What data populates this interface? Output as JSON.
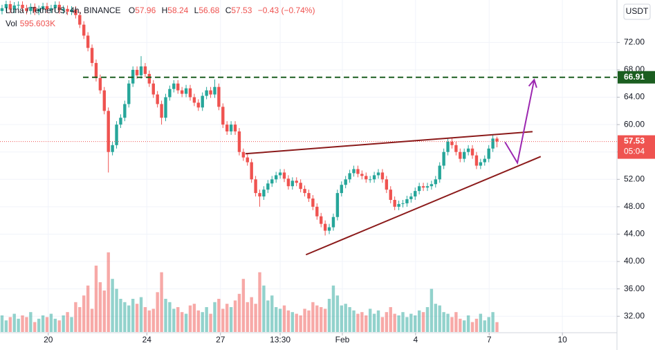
{
  "chart_data": {
    "type": "candlestick",
    "symbol": "Luna / TetherUS, 4h, BINANCE",
    "ohlc_labels": [
      "O",
      "H",
      "L",
      "C"
    ],
    "change_label": "−0.43 (−0.74%)",
    "axis_unit": "USDT",
    "countdown": "05:04",
    "up_color": "#26a69a",
    "down_color": "#ef5350",
    "open": [
      76.6,
      77.0,
      77.6,
      76.8,
      77.4,
      77.5,
      77.0,
      76.6,
      77.2,
      76.5,
      76.9,
      77.3,
      76.8,
      77.0,
      77.5,
      76.7,
      76.9,
      76.5,
      76.8,
      76.0,
      74.6,
      73.0,
      71.2,
      69.0,
      66.8,
      65.0,
      62.0,
      56.0,
      57.0,
      60.0,
      61.0,
      63.0,
      66.0,
      68.0,
      67.2,
      68.5,
      67.4,
      66.0,
      64.4,
      63.0,
      61.0,
      64.0,
      65.2,
      66.0,
      65.0,
      64.5,
      65.3,
      64.0,
      63.2,
      62.5,
      64.2,
      65.0,
      64.4,
      65.5,
      62.6,
      60.0,
      59.0,
      60.0,
      59.0,
      56.0,
      55.2,
      54.5,
      52.0,
      50.0,
      49.5,
      50.5,
      51.4,
      52.0,
      52.6,
      53.0,
      52.1,
      51.0,
      51.8,
      51.5,
      50.6,
      50.0,
      49.2,
      48.0,
      46.6,
      45.5,
      44.5,
      45.0,
      46.5,
      50.0,
      51.2,
      52.0,
      52.9,
      53.5,
      52.8,
      52.5,
      52.0,
      52.0,
      52.6,
      53.0,
      52.0,
      50.5,
      49.0,
      48.0,
      48.4,
      48.5,
      49.1,
      49.5,
      50.3,
      51.0,
      50.8,
      51.0,
      51.3,
      52.0,
      54.0,
      56.0,
      57.5,
      57.0,
      56.0,
      55.0,
      56.0,
      56.5,
      55.5,
      54.0,
      54.5,
      55.0,
      56.5,
      57.96
    ],
    "high": [
      77.5,
      78.1,
      78.1,
      77.9,
      78.0,
      78.0,
      77.5,
      77.7,
      77.7,
      77.4,
      77.8,
      77.8,
      77.5,
      78.0,
      78.0,
      77.4,
      77.4,
      77.3,
      77.3,
      76.5,
      75.1,
      73.5,
      71.7,
      69.5,
      67.3,
      65.5,
      62.5,
      57.5,
      60.5,
      61.5,
      63.5,
      66.5,
      68.5,
      68.5,
      70.0,
      69.0,
      67.9,
      66.5,
      64.9,
      63.5,
      64.5,
      65.7,
      66.5,
      66.5,
      65.5,
      65.8,
      65.8,
      64.5,
      63.7,
      64.7,
      65.5,
      65.5,
      66.6,
      66.0,
      63.1,
      60.5,
      60.5,
      60.5,
      59.5,
      56.5,
      55.7,
      55.0,
      52.5,
      50.5,
      51.0,
      51.9,
      52.5,
      53.1,
      53.5,
      53.5,
      52.6,
      52.3,
      52.3,
      52.0,
      51.1,
      50.5,
      49.7,
      48.5,
      47.1,
      46.0,
      45.5,
      47.0,
      50.5,
      51.7,
      52.5,
      53.4,
      54.0,
      54.0,
      53.3,
      53.0,
      52.5,
      53.1,
      53.5,
      53.5,
      52.5,
      51.0,
      49.5,
      48.9,
      49.0,
      49.6,
      50.0,
      50.8,
      51.5,
      51.5,
      51.5,
      51.8,
      52.5,
      54.5,
      56.5,
      58.0,
      58.0,
      57.5,
      56.5,
      56.5,
      57.0,
      57.0,
      56.0,
      55.0,
      55.5,
      57.0,
      58.5,
      58.24
    ],
    "low": [
      76.1,
      76.5,
      76.3,
      76.3,
      76.9,
      76.5,
      76.1,
      76.1,
      76.0,
      76.0,
      76.4,
      76.3,
      76.3,
      76.5,
      76.2,
      76.2,
      76.0,
      76.0,
      75.5,
      74.1,
      72.5,
      70.7,
      68.5,
      66.3,
      64.5,
      61.5,
      53.0,
      55.5,
      56.5,
      59.5,
      60.5,
      62.5,
      65.5,
      66.7,
      66.7,
      66.9,
      65.5,
      63.9,
      62.5,
      60.0,
      60.5,
      63.5,
      64.7,
      64.5,
      64.0,
      64.0,
      63.5,
      62.7,
      62.0,
      62.0,
      63.7,
      63.9,
      63.9,
      62.1,
      59.5,
      58.5,
      58.5,
      58.5,
      55.5,
      54.7,
      54.0,
      51.5,
      49.5,
      48.0,
      49.0,
      50.0,
      50.9,
      51.5,
      52.1,
      51.6,
      50.5,
      50.5,
      51.0,
      50.1,
      49.5,
      48.7,
      47.5,
      46.1,
      45.0,
      43.8,
      44.0,
      44.5,
      46.0,
      49.5,
      50.7,
      51.5,
      52.4,
      52.3,
      52.0,
      51.5,
      51.5,
      51.5,
      52.1,
      51.5,
      50.0,
      48.5,
      47.5,
      47.5,
      47.9,
      48.0,
      48.6,
      49.0,
      49.8,
      50.3,
      50.3,
      50.5,
      50.8,
      51.5,
      53.5,
      55.5,
      56.5,
      55.5,
      54.5,
      54.5,
      55.5,
      55.0,
      53.5,
      53.5,
      54.0,
      54.5,
      56.0,
      56.68
    ],
    "close": [
      77.0,
      77.6,
      76.8,
      77.4,
      77.5,
      77.0,
      76.6,
      77.2,
      76.5,
      76.9,
      77.3,
      76.8,
      77.0,
      77.5,
      76.7,
      76.9,
      76.5,
      76.8,
      76.0,
      74.6,
      73.0,
      71.2,
      69.0,
      66.8,
      65.0,
      62.0,
      56.0,
      57.0,
      60.0,
      61.0,
      63.0,
      66.0,
      68.0,
      67.2,
      68.5,
      67.4,
      66.0,
      64.4,
      63.0,
      61.0,
      64.0,
      65.2,
      66.0,
      65.0,
      64.5,
      65.3,
      64.0,
      63.2,
      62.5,
      64.2,
      65.0,
      64.4,
      65.5,
      62.6,
      60.0,
      59.0,
      60.0,
      59.0,
      56.0,
      55.2,
      54.5,
      52.0,
      50.0,
      49.5,
      50.5,
      51.4,
      52.0,
      52.6,
      53.0,
      52.1,
      51.0,
      51.8,
      51.5,
      50.6,
      50.0,
      49.2,
      48.0,
      46.6,
      45.5,
      44.5,
      45.0,
      46.5,
      50.0,
      51.2,
      52.0,
      52.9,
      53.5,
      52.8,
      52.5,
      52.0,
      52.0,
      52.6,
      53.0,
      52.0,
      50.5,
      49.0,
      48.0,
      48.4,
      48.5,
      49.1,
      49.5,
      50.3,
      51.0,
      50.8,
      51.0,
      51.3,
      52.0,
      54.0,
      56.0,
      57.5,
      57.0,
      56.0,
      55.0,
      56.0,
      56.5,
      55.5,
      54.0,
      54.5,
      55.0,
      56.5,
      57.96,
      57.53
    ],
    "volume": {
      "name": "Vol",
      "last_label": "595.603K",
      "values": [
        1000,
        700,
        900,
        1100,
        800,
        1000,
        900,
        1200,
        600,
        800,
        1000,
        900,
        1100,
        800,
        700,
        1000,
        1200,
        900,
        1800,
        1500,
        2200,
        2800,
        1400,
        4000,
        3000,
        2500,
        4800,
        3200,
        2600,
        2000,
        1800,
        1600,
        2000,
        1700,
        2100,
        1500,
        1300,
        1400,
        2400,
        3600,
        2000,
        1800,
        1400,
        1500,
        1200,
        1100,
        1600,
        1700,
        1300,
        1200,
        1500,
        1100,
        1800,
        2000,
        1400,
        1700,
        1500,
        1900,
        2300,
        3200,
        1800,
        2100,
        1700,
        3600,
        2800,
        1900,
        2200,
        1500,
        1400,
        1600,
        1300,
        1200,
        1100,
        1000,
        1400,
        1300,
        1800,
        1600,
        1500,
        1400,
        2000,
        2800,
        2200,
        1600,
        1700,
        1500,
        1300,
        1100,
        1200,
        1000,
        1400,
        1100,
        1300,
        900,
        1200,
        1500,
        1100,
        1000,
        1200,
        900,
        1100,
        1000,
        1300,
        1200,
        1500,
        2600,
        1700,
        1600,
        1200,
        1100,
        900,
        1200,
        800,
        700,
        1000,
        600,
        800,
        1100,
        700,
        900,
        1200,
        595.603
      ]
    },
    "volume_ylim": [
      0,
      20000
    ],
    "xlim": [
      -0.5,
      150
    ],
    "xticks": [
      {
        "value": 11.3,
        "label": "20"
      },
      {
        "value": 35.4,
        "label": "24"
      },
      {
        "value": 53.4,
        "label": "27"
      },
      {
        "value": 68.0,
        "label": "13:30"
      },
      {
        "value": 83.2,
        "label": "Feb"
      },
      {
        "value": 101.1,
        "label": "4"
      },
      {
        "value": 119.1,
        "label": "7"
      },
      {
        "value": 137.0,
        "label": "10"
      }
    ],
    "ylim": [
      29.7,
      78.2
    ],
    "yticks": [
      {
        "value": 32,
        "label": "32.00"
      },
      {
        "value": 36,
        "label": "36.00"
      },
      {
        "value": 40,
        "label": "40.00"
      },
      {
        "value": 44,
        "label": "44.00"
      },
      {
        "value": 48,
        "label": "48.00"
      },
      {
        "value": 52,
        "label": "52.00"
      },
      {
        "value": 56,
        "label": "56.00"
      },
      {
        "value": 60,
        "label": "60.00"
      },
      {
        "value": 64,
        "label": "64.00"
      },
      {
        "value": 68,
        "label": "68.00"
      },
      {
        "value": 72,
        "label": "72.00"
      }
    ],
    "grid": true,
    "target_line": {
      "value": 66.91,
      "start": 19.8,
      "color": "#1b5e20"
    },
    "trendlines": [
      {
        "color": "#8b1a1a",
        "x": [
          59.5,
          129.7
        ],
        "y": [
          55.74,
          58.97
        ]
      },
      {
        "color": "#8b1a1a",
        "x": [
          74.3,
          131.7
        ],
        "y": [
          40.99,
          55.33
        ]
      }
    ],
    "arrow": {
      "color": "#9c27b0",
      "x": [
        122.96,
        126.0,
        130.1
      ],
      "y": [
        57.45,
        54.42,
        66.55
      ]
    }
  }
}
